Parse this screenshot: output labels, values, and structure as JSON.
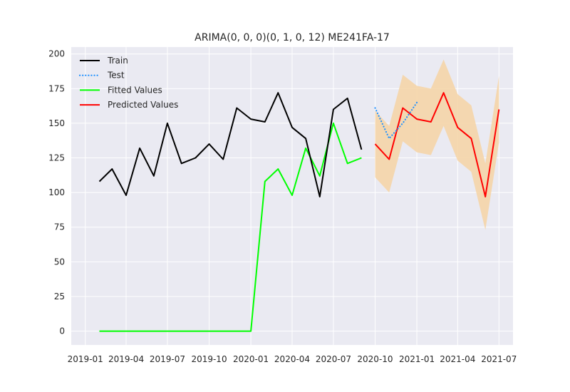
{
  "chart_data": {
    "type": "line",
    "title": "ARIMA(0, 0, 0)(0, 1, 0, 12) ME241FA-17",
    "xlabel": "",
    "ylabel": "",
    "x_ticks": [
      "2019-01",
      "2019-04",
      "2019-07",
      "2019-10",
      "2020-01",
      "2020-04",
      "2020-07",
      "2020-10",
      "2021-01",
      "2021-04",
      "2021-07"
    ],
    "y_ticks": [
      0,
      25,
      50,
      75,
      100,
      125,
      150,
      175,
      200
    ],
    "xlim": [
      "2018-12-01",
      "2021-08-01"
    ],
    "ylim": [
      -10,
      205
    ],
    "grid": true,
    "legend_position": "top-left",
    "colors": {
      "background": "#eaeaf2",
      "grid": "#ffffff",
      "train": "#000000",
      "test": "#1e90ff",
      "fitted": "#00ff00",
      "predicted": "#ff0000",
      "interval": "#f5d5a8"
    },
    "series": [
      {
        "name": "Train",
        "style": "solid",
        "points": [
          [
            "2019-02-01",
            108
          ],
          [
            "2019-03-01",
            117
          ],
          [
            "2019-04-01",
            98
          ],
          [
            "2019-05-01",
            132
          ],
          [
            "2019-06-01",
            112
          ],
          [
            "2019-07-01",
            150
          ],
          [
            "2019-08-01",
            121
          ],
          [
            "2019-09-01",
            125
          ],
          [
            "2019-10-01",
            135
          ],
          [
            "2019-11-01",
            124
          ],
          [
            "2019-12-01",
            161
          ],
          [
            "2020-01-01",
            153
          ],
          [
            "2020-02-01",
            151
          ],
          [
            "2020-03-01",
            172
          ],
          [
            "2020-04-01",
            147
          ],
          [
            "2020-05-01",
            139
          ],
          [
            "2020-06-01",
            97
          ],
          [
            "2020-07-01",
            160
          ],
          [
            "2020-08-01",
            168
          ],
          [
            "2020-09-01",
            131
          ]
        ]
      },
      {
        "name": "Test",
        "style": "dotted",
        "points": [
          [
            "2020-10-01",
            161
          ],
          [
            "2020-11-01",
            139
          ],
          [
            "2020-12-01",
            150
          ],
          [
            "2021-01-01",
            165
          ]
        ]
      },
      {
        "name": "Fitted Values",
        "style": "solid",
        "points": [
          [
            "2019-02-01",
            0
          ],
          [
            "2019-03-01",
            0
          ],
          [
            "2019-04-01",
            0
          ],
          [
            "2019-05-01",
            0
          ],
          [
            "2019-06-01",
            0
          ],
          [
            "2019-07-01",
            0
          ],
          [
            "2019-08-01",
            0
          ],
          [
            "2019-09-01",
            0
          ],
          [
            "2019-10-01",
            0
          ],
          [
            "2019-11-01",
            0
          ],
          [
            "2019-12-01",
            0
          ],
          [
            "2020-01-01",
            0
          ],
          [
            "2020-02-01",
            108
          ],
          [
            "2020-03-01",
            117
          ],
          [
            "2020-04-01",
            98
          ],
          [
            "2020-05-01",
            132
          ],
          [
            "2020-06-01",
            112
          ],
          [
            "2020-07-01",
            150
          ],
          [
            "2020-08-01",
            121
          ],
          [
            "2020-09-01",
            125
          ]
        ]
      },
      {
        "name": "Predicted Values",
        "style": "solid",
        "points": [
          [
            "2020-10-01",
            135
          ],
          [
            "2020-11-01",
            124
          ],
          [
            "2020-12-01",
            161
          ],
          [
            "2021-01-01",
            153
          ],
          [
            "2021-02-01",
            151
          ],
          [
            "2021-03-01",
            172
          ],
          [
            "2021-04-01",
            147
          ],
          [
            "2021-05-01",
            139
          ],
          [
            "2021-06-01",
            97
          ],
          [
            "2021-07-01",
            160
          ]
        ]
      }
    ],
    "interval": {
      "points": [
        [
          "2020-10-01",
          111,
          159
        ],
        [
          "2020-11-01",
          100,
          148
        ],
        [
          "2020-12-01",
          137,
          185
        ],
        [
          "2021-01-01",
          129,
          177
        ],
        [
          "2021-02-01",
          127,
          175
        ],
        [
          "2021-03-01",
          148,
          196
        ],
        [
          "2021-04-01",
          123,
          171
        ],
        [
          "2021-05-01",
          115,
          163
        ],
        [
          "2021-06-01",
          73,
          121
        ],
        [
          "2021-07-01",
          136,
          184
        ]
      ]
    }
  }
}
